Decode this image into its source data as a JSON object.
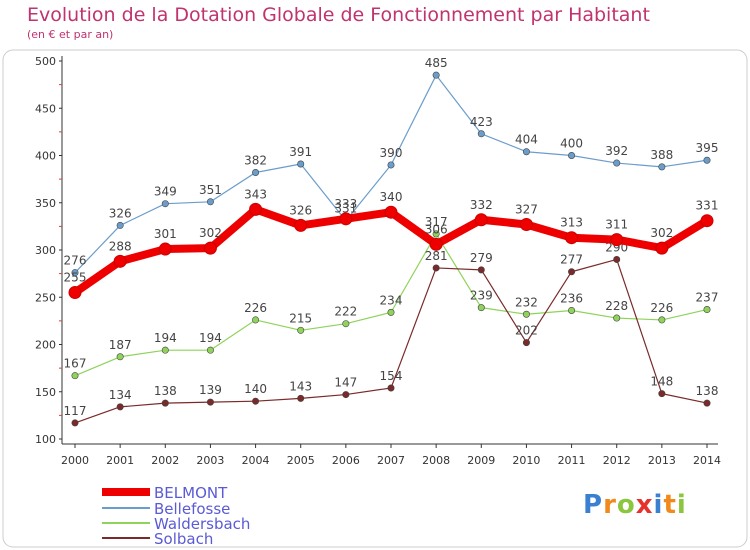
{
  "title": "Evolution de la Dotation Globale de Fonctionnement par Habitant",
  "subtitle": "(en € et par an)",
  "logo": {
    "text": "Proxiti",
    "letter_colors": [
      "#3a7fd0",
      "#f08a1c",
      "#8cc63f",
      "#e6322b",
      "#3a7fd0",
      "#f08a1c",
      "#8cc63f"
    ]
  },
  "chart_data": {
    "type": "line",
    "x": [
      "2000",
      "2001",
      "2002",
      "2003",
      "2004",
      "2005",
      "2006",
      "2007",
      "2008",
      "2009",
      "2010",
      "2011",
      "2012",
      "2013",
      "2014"
    ],
    "ylim": [
      100,
      500
    ],
    "yticks": [
      "100",
      "150",
      "200",
      "250",
      "300",
      "350",
      "400",
      "450",
      "500"
    ],
    "grid": false,
    "legend_position": "bottom-left",
    "series": [
      {
        "name": "BELMONT",
        "color": "#ee0000",
        "values": [
          255,
          288,
          301,
          302,
          343,
          326,
          333,
          340,
          306,
          332,
          327,
          313,
          311,
          302,
          331
        ]
      },
      {
        "name": "Bellefosse",
        "color": "#6b9dcc",
        "values": [
          276,
          326,
          349,
          351,
          382,
          391,
          331,
          390,
          485,
          423,
          404,
          400,
          392,
          388,
          395
        ]
      },
      {
        "name": "Waldersbach",
        "color": "#8fd35a",
        "values": [
          167,
          187,
          194,
          194,
          226,
          215,
          222,
          234,
          317,
          239,
          232,
          236,
          228,
          226,
          237
        ]
      },
      {
        "name": "Solbach",
        "color": "#7a2a2a",
        "values": [
          117,
          134,
          138,
          139,
          140,
          143,
          147,
          154,
          281,
          279,
          202,
          277,
          290,
          148,
          138
        ]
      }
    ]
  }
}
